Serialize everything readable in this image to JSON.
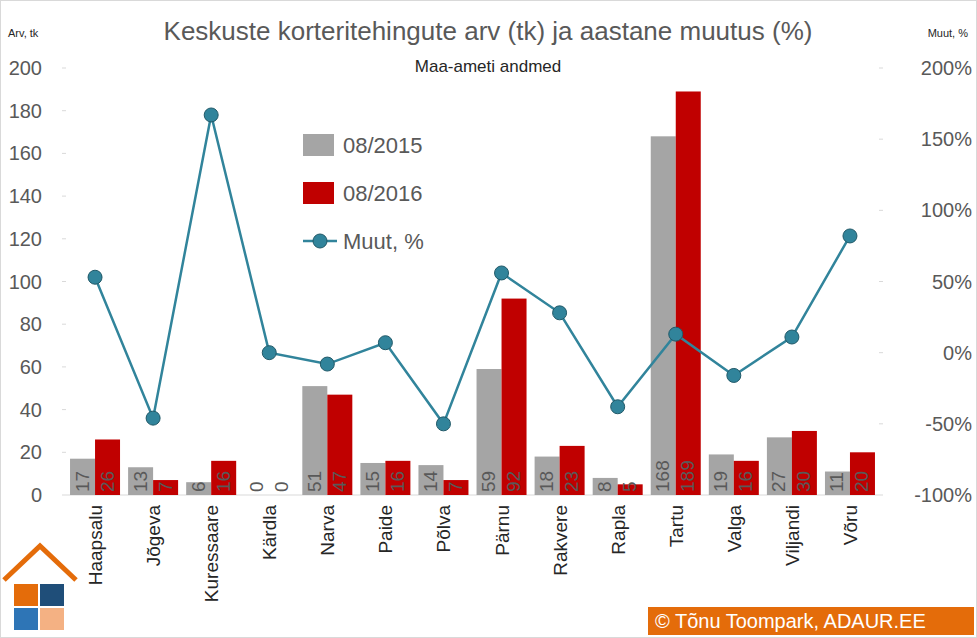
{
  "chart_data": {
    "type": "bar",
    "title": "Keskuste korteritehingute arv (tk) ja aastane muutus (%)",
    "subtitle": "Maa-ameti andmed",
    "y_label": "Arv, tk",
    "y2_label": "Muut, %",
    "annotations": [
      "© Tõnu Toompark, ADAUR.EE"
    ],
    "categories": [
      "Haapsalu",
      "Jõgeva",
      "Kuressaare",
      "Kärdla",
      "Narva",
      "Paide",
      "Põlva",
      "Pärnu",
      "Rakvere",
      "Rapla",
      "Tartu",
      "Valga",
      "Viljandi",
      "Võru"
    ],
    "series": [
      {
        "name": "08/2015",
        "type": "bar",
        "color": "#a5a5a5",
        "data_labels": true,
        "values": [
          17,
          13,
          6,
          0,
          51,
          15,
          14,
          59,
          18,
          8,
          168,
          19,
          27,
          11
        ]
      },
      {
        "name": "08/2016",
        "type": "bar",
        "color": "#c00000",
        "data_labels": true,
        "values": [
          26,
          7,
          16,
          0,
          47,
          16,
          7,
          92,
          23,
          5,
          189,
          16,
          30,
          20
        ]
      },
      {
        "name": "Muut, %",
        "type": "line",
        "axis": "y2",
        "color": "#31849b",
        "marker": "circle",
        "line_style": "solid",
        "values": [
          53,
          -46,
          167,
          0,
          -8,
          7,
          -50,
          56,
          28,
          -38,
          13,
          -16,
          11,
          82
        ]
      }
    ],
    "ylim": [
      0,
      200
    ],
    "yticks": [
      0,
      20,
      40,
      60,
      80,
      100,
      120,
      140,
      160,
      180,
      200
    ],
    "y2lim": [
      -100,
      200
    ],
    "y2ticks": [
      {
        "value": -100,
        "label": "-100%"
      },
      {
        "value": -50,
        "label": "-50%"
      },
      {
        "value": 0,
        "label": "0%"
      },
      {
        "value": 50,
        "label": "50%"
      },
      {
        "value": 100,
        "label": "100%"
      },
      {
        "value": 150,
        "label": "150%"
      },
      {
        "value": 200,
        "label": "200%"
      }
    ],
    "grid": false,
    "legend": "top-left"
  }
}
